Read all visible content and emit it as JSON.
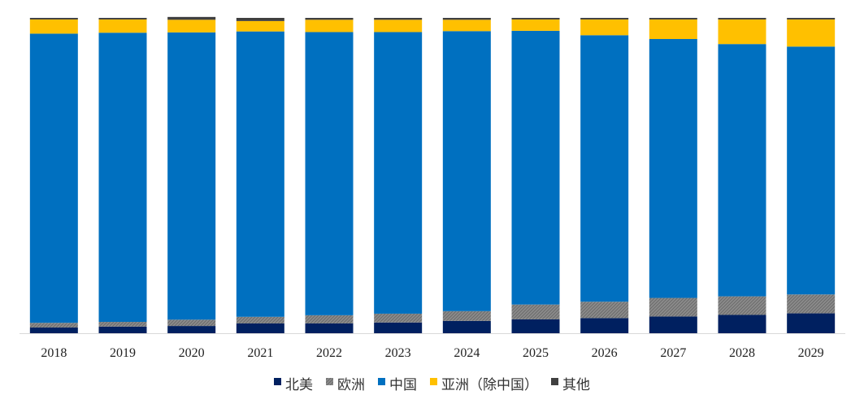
{
  "chart_data": {
    "type": "bar",
    "stacked": true,
    "normalized": true,
    "categories": [
      "2018",
      "2019",
      "2020",
      "2021",
      "2022",
      "2023",
      "2024",
      "2025",
      "2026",
      "2027",
      "2028",
      "2029"
    ],
    "ylim": [
      0,
      100
    ],
    "grid": false,
    "legend_placement": "bottom",
    "series": [
      {
        "name": "北美",
        "color": "#002060",
        "pattern": "solid",
        "values": [
          1.8,
          2.1,
          2.3,
          3.1,
          3.1,
          3.4,
          3.9,
          4.4,
          4.8,
          5.3,
          5.8,
          6.3
        ]
      },
      {
        "name": "欧洲",
        "color": "#7f7f7f",
        "pattern": "hatched",
        "values": [
          1.5,
          1.5,
          2.0,
          2.1,
          2.6,
          2.8,
          3.1,
          4.7,
          5.2,
          5.9,
          5.9,
          6.0
        ]
      },
      {
        "name": "中国",
        "color": "#0070c0",
        "pattern": "solid",
        "values": [
          91.7,
          91.7,
          91.1,
          90.5,
          89.8,
          89.3,
          88.8,
          86.8,
          84.5,
          82.1,
          80.0,
          78.6
        ]
      },
      {
        "name": "亚洲（除中国）",
        "color": "#ffc000",
        "pattern": "solid",
        "values": [
          4.5,
          4.2,
          4.0,
          3.3,
          3.9,
          3.9,
          3.6,
          3.6,
          5.0,
          6.2,
          7.8,
          8.6
        ]
      },
      {
        "name": "其他",
        "color": "#404040",
        "pattern": "solid",
        "values": [
          0.5,
          0.5,
          0.9,
          1.0,
          0.6,
          0.6,
          0.6,
          0.5,
          0.5,
          0.5,
          0.5,
          0.5
        ]
      }
    ]
  }
}
